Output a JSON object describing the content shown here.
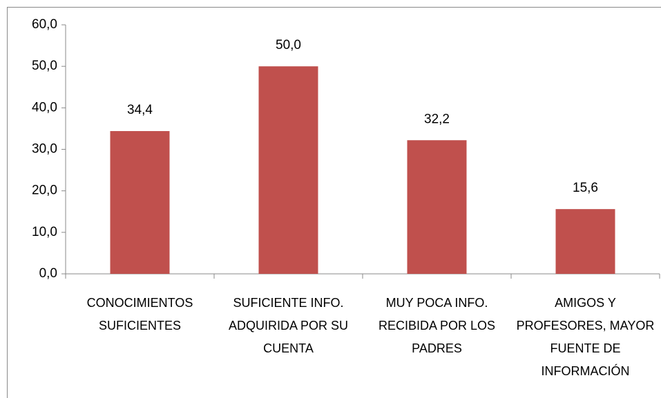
{
  "chart_data": {
    "type": "bar",
    "categories": [
      "CONOCIMIENTOS SUFICIENTES",
      "SUFICIENTE INFO. ADQUIRIDA POR SU CUENTA",
      "MUY POCA INFO. RECIBIDA POR LOS PADRES",
      "AMIGOS Y PROFESORES, MAYOR FUENTE DE INFORMACIÓN"
    ],
    "values": [
      34.4,
      50.0,
      32.2,
      15.6
    ],
    "value_labels": [
      "34,4",
      "50,0",
      "32,2",
      "15,6"
    ],
    "color": "#c0504d",
    "ylim": [
      0,
      60
    ],
    "yticks": [
      {
        "value": 0,
        "label": "0,0"
      },
      {
        "value": 10,
        "label": "10,0"
      },
      {
        "value": 20,
        "label": "20,0"
      },
      {
        "value": 30,
        "label": "30,0"
      },
      {
        "value": 40,
        "label": "40,0"
      },
      {
        "value": 50,
        "label": "50,0"
      },
      {
        "value": 60,
        "label": "60,0"
      }
    ],
    "grid": false
  }
}
